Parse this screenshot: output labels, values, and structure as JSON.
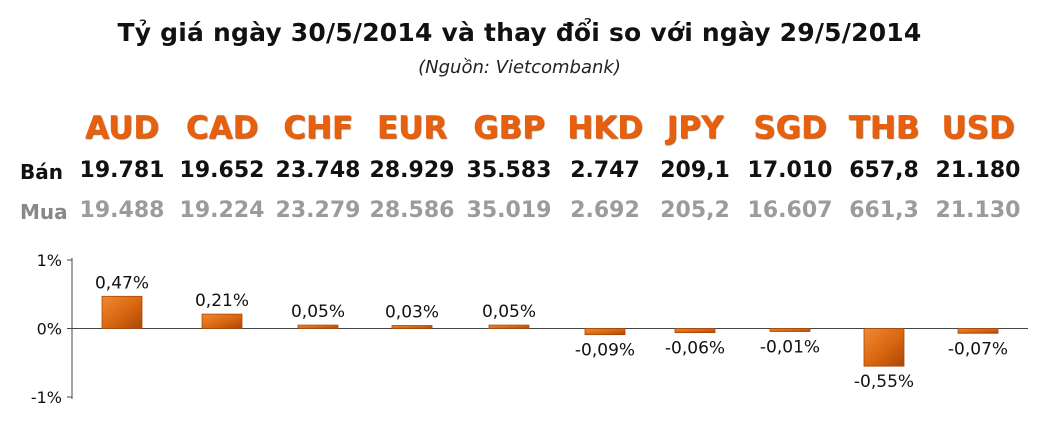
{
  "title": "Tỷ giá ngày 30/5/2014 và thay đổi so với ngày 29/5/2014",
  "subtitle": "(Nguồn: Vietcombank)",
  "rows": {
    "sell_label": "Bán",
    "buy_label": "Mua"
  },
  "currencies": [
    {
      "code": "AUD",
      "sell": "19.781",
      "buy": "19.488"
    },
    {
      "code": "CAD",
      "sell": "19.652",
      "buy": "19.224"
    },
    {
      "code": "CHF",
      "sell": "23.748",
      "buy": "23.279"
    },
    {
      "code": "EUR",
      "sell": "28.929",
      "buy": "28.586"
    },
    {
      "code": "GBP",
      "sell": "35.583",
      "buy": "35.019"
    },
    {
      "code": "HKD",
      "sell": "2.747",
      "buy": "2.692"
    },
    {
      "code": "JPY",
      "sell": "209,1",
      "buy": "205,2"
    },
    {
      "code": "SGD",
      "sell": "17.010",
      "buy": "16.607"
    },
    {
      "code": "THB",
      "sell": "657,8",
      "buy": "661,3"
    },
    {
      "code": "USD",
      "sell": "21.180",
      "buy": "21.130"
    }
  ],
  "colors": {
    "accent": "#e8600e",
    "bar": "#d9650f",
    "bar_dark": "#a8480a",
    "buy_text": "#9b9b9b"
  },
  "chart_data": {
    "type": "bar",
    "categories": [
      "AUD",
      "CAD",
      "CHF",
      "EUR",
      "GBP",
      "HKD",
      "JPY",
      "SGD",
      "THB",
      "USD"
    ],
    "values": [
      0.47,
      0.21,
      0.05,
      0.03,
      0.05,
      -0.09,
      -0.06,
      -0.01,
      -0.55,
      -0.07
    ],
    "data_labels": [
      "0,47%",
      "0,21%",
      "0,05%",
      "0,03%",
      "0,05%",
      "-0,09%",
      "-0,06%",
      "-0,01%",
      "-0,55%",
      "-0,07%"
    ],
    "ylim": [
      -1,
      1
    ],
    "yticks": [
      1,
      0,
      -1
    ],
    "ytick_labels": [
      "1%",
      "0%",
      "-1%"
    ],
    "grid": false,
    "legend": "none"
  }
}
